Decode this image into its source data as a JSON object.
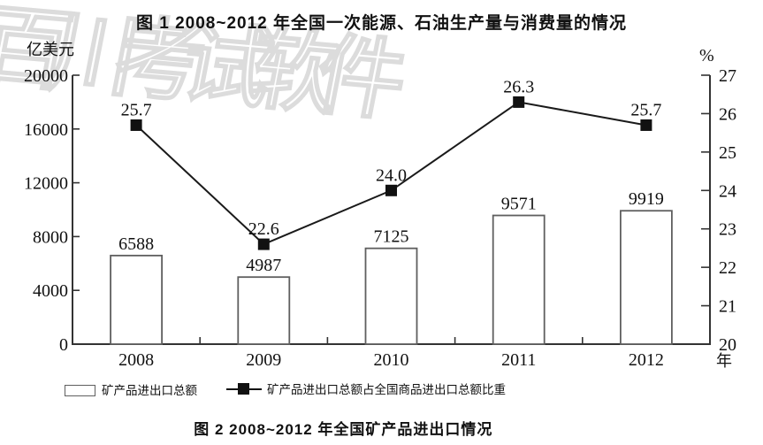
{
  "header": {
    "title": "图 1  2008~2012 年全国一次能源、石油生产量与消费量的情况"
  },
  "caption": {
    "text": "图 2  2008~2012 年全国矿产品进出口情况"
  },
  "watermark": {
    "text": "百川考试软件"
  },
  "legend": {
    "bar_label": "矿产品进出口总额",
    "line_label": "矿产品进出口总额占全国商品进出口总额比重"
  },
  "chart_data": {
    "type": "bar",
    "title": "图 2 2008~2012 年全国矿产品进出口情况",
    "categories": [
      "2008",
      "2009",
      "2010",
      "2011",
      "2012"
    ],
    "series": [
      {
        "name": "矿产品进出口总额",
        "type": "bar",
        "axis": "left",
        "values": [
          6588,
          4987,
          7125,
          9571,
          9919
        ],
        "labels": [
          "6588",
          "4987",
          "7125",
          "9571",
          "9919"
        ]
      },
      {
        "name": "矿产品进出口总额占全国商品进出口总额比重",
        "type": "line",
        "axis": "right",
        "values": [
          25.7,
          22.6,
          24.0,
          26.3,
          25.7
        ],
        "labels": [
          "25.7",
          "22.6",
          "24.0",
          "26.3",
          "25.7"
        ]
      }
    ],
    "left_axis": {
      "label": "亿美元",
      "min": 0,
      "max": 20000,
      "ticks": [
        "0",
        "4000",
        "8000",
        "12000",
        "16000",
        "20000"
      ]
    },
    "right_axis": {
      "label": "%",
      "min": 20,
      "max": 27,
      "ticks": [
        "20",
        "21",
        "22",
        "23",
        "24",
        "25",
        "26",
        "27"
      ]
    },
    "x_axis": {
      "label": "年"
    },
    "legend_position": "bottom",
    "grid": false
  },
  "colors": {
    "bar_fill": "#ffffff",
    "bar_stroke": "#5f5f5f",
    "line": "#1a1a1a",
    "marker": "#111111",
    "axis": "#333333",
    "text": "#111111",
    "watermark": "#dcdcdc"
  }
}
